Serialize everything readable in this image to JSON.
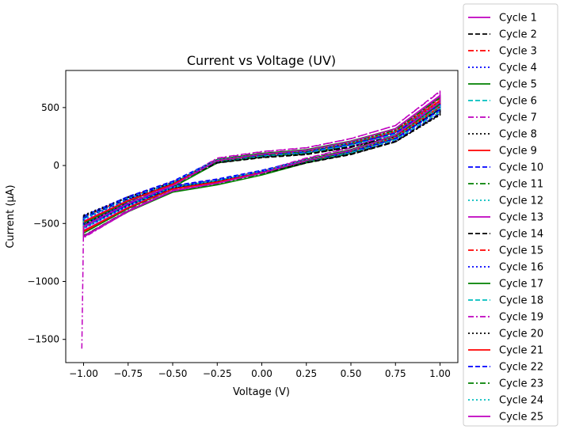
{
  "chart_data": {
    "type": "line",
    "title": "Current vs Voltage (UV)",
    "xlabel": "Voltage (V)",
    "ylabel": "Current (µA)",
    "xlim": [
      -1.1,
      1.1
    ],
    "ylim": [
      -1700,
      820
    ],
    "xticks": [
      -1.0,
      -0.75,
      -0.5,
      -0.25,
      0.0,
      0.25,
      0.5,
      0.75,
      1.0
    ],
    "xtick_labels": [
      "−1.00",
      "−0.75",
      "−0.50",
      "−0.25",
      "0.00",
      "0.25",
      "0.50",
      "0.75",
      "1.00"
    ],
    "yticks": [
      -1500,
      -1000,
      -500,
      0,
      500
    ],
    "ytick_labels": [
      "−1500",
      "−1000",
      "−500",
      "0",
      "500"
    ],
    "grid": false,
    "legend_position": "outside right",
    "style_cycle": [
      {
        "color": "#bf00bf",
        "dash": "solid"
      },
      {
        "color": "#000000",
        "dash": "dashed"
      },
      {
        "color": "#ff0000",
        "dash": "dashdot"
      },
      {
        "color": "#0000ff",
        "dash": "dotted"
      },
      {
        "color": "#008000",
        "dash": "solid"
      },
      {
        "color": "#00bfbf",
        "dash": "dashed"
      },
      {
        "color": "#bf00bf",
        "dash": "dashdot"
      },
      {
        "color": "#000000",
        "dash": "dotted"
      },
      {
        "color": "#ff0000",
        "dash": "solid"
      },
      {
        "color": "#0000ff",
        "dash": "dashed"
      },
      {
        "color": "#008000",
        "dash": "dashdot"
      },
      {
        "color": "#00bfbf",
        "dash": "dotted"
      }
    ],
    "loop_template": {
      "note_free": true,
      "upper_branch": {
        "x": [
          -1.0,
          -0.75,
          -0.5,
          -0.25,
          0.0,
          0.25,
          0.5,
          0.75,
          1.0
        ],
        "y": [
          -480,
          -300,
          -160,
          40,
          90,
          120,
          190,
          290,
          550
        ]
      },
      "lower_branch": {
        "x": [
          1.0,
          0.75,
          0.5,
          0.25,
          0.0,
          -0.25,
          -0.5,
          -0.75,
          -1.0
        ],
        "y": [
          500,
          240,
          120,
          40,
          -60,
          -140,
          -200,
          -360,
          -560
        ]
      }
    },
    "series": [
      {
        "name": "Cycle 1",
        "scale": 1.0,
        "offset": 0,
        "start_y": null
      },
      {
        "name": "Cycle 2",
        "scale": 0.92,
        "offset": -10,
        "start_y": null
      },
      {
        "name": "Cycle 3",
        "scale": 0.95,
        "offset": 10,
        "start_y": null
      },
      {
        "name": "Cycle 4",
        "scale": 0.9,
        "offset": 0,
        "start_y": null
      },
      {
        "name": "Cycle 5",
        "scale": 1.05,
        "offset": -20,
        "start_y": null
      },
      {
        "name": "Cycle 6",
        "scale": 0.97,
        "offset": 5,
        "start_y": null
      },
      {
        "name": "Cycle 7",
        "scale": 1.12,
        "offset": 20,
        "start_y": -1580
      },
      {
        "name": "Cycle 8",
        "scale": 0.88,
        "offset": -5,
        "start_y": null
      },
      {
        "name": "Cycle 9",
        "scale": 1.02,
        "offset": 0,
        "start_y": null
      },
      {
        "name": "Cycle 10",
        "scale": 0.94,
        "offset": 15,
        "start_y": null
      },
      {
        "name": "Cycle 11",
        "scale": 1.08,
        "offset": -10,
        "start_y": null
      },
      {
        "name": "Cycle 12",
        "scale": 0.99,
        "offset": 10,
        "start_y": null
      },
      {
        "name": "Cycle 13",
        "scale": 1.1,
        "offset": 0,
        "start_y": null
      },
      {
        "name": "Cycle 14",
        "scale": 0.91,
        "offset": -15,
        "start_y": null
      },
      {
        "name": "Cycle 15",
        "scale": 1.04,
        "offset": 5,
        "start_y": null
      },
      {
        "name": "Cycle 16",
        "scale": 0.96,
        "offset": -5,
        "start_y": null
      },
      {
        "name": "Cycle 17",
        "scale": 1.06,
        "offset": 10,
        "start_y": null
      },
      {
        "name": "Cycle 18",
        "scale": 0.93,
        "offset": 0,
        "start_y": null
      },
      {
        "name": "Cycle 19",
        "scale": 1.14,
        "offset": 15,
        "start_y": null
      },
      {
        "name": "Cycle 20",
        "scale": 0.89,
        "offset": -10,
        "start_y": null
      },
      {
        "name": "Cycle 21",
        "scale": 1.01,
        "offset": 0,
        "start_y": null
      },
      {
        "name": "Cycle 22",
        "scale": 0.95,
        "offset": 5,
        "start_y": null
      },
      {
        "name": "Cycle 23",
        "scale": 1.07,
        "offset": -5,
        "start_y": null
      },
      {
        "name": "Cycle 24",
        "scale": 0.98,
        "offset": 10,
        "start_y": null
      },
      {
        "name": "Cycle 25",
        "scale": 1.09,
        "offset": 0,
        "start_y": null
      }
    ]
  }
}
